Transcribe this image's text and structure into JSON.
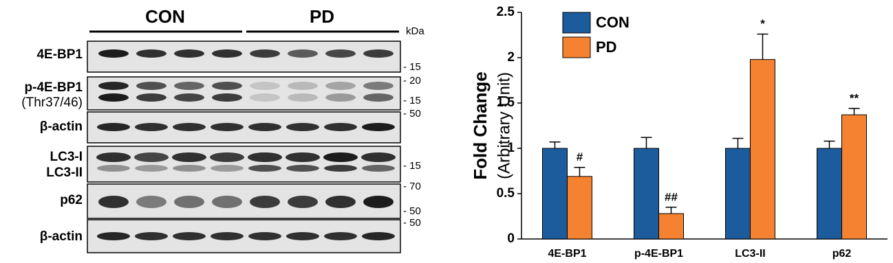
{
  "blot": {
    "groups": [
      "CON",
      "PD"
    ],
    "unit": "kDa",
    "rows": [
      "4E-BP1",
      "p-4E-BP1",
      "(Thr37/46)",
      "β-actin",
      "LC3-I",
      "LC3-II",
      "p62",
      "β-actin"
    ],
    "markers": [
      "- 15",
      "- 20",
      "- 15",
      "- 50",
      "- 15",
      "- 70",
      "- 50",
      "- 50"
    ]
  },
  "chart_data": {
    "type": "bar",
    "ylabel": [
      "Fold Change",
      "(Arbitrary Unit)"
    ],
    "categories": [
      "4E-BP1",
      "p-4E-BP1",
      "LC3-II",
      "p62"
    ],
    "series": [
      {
        "name": "CON",
        "color": "#1c5b9c",
        "values": [
          1,
          1,
          1,
          1
        ],
        "errors": [
          0.07,
          0.12,
          0.11,
          0.08
        ]
      },
      {
        "name": "PD",
        "color": "#f58231",
        "values": [
          0.69,
          0.28,
          1.98,
          1.37
        ],
        "errors": [
          0.1,
          0.07,
          0.28,
          0.07
        ],
        "annotations": [
          "#",
          "##",
          "*",
          "**"
        ]
      }
    ],
    "ylim": [
      0,
      2.5
    ],
    "yticks": [
      0,
      0.5,
      1,
      1.5,
      2,
      2.5
    ],
    "legend": "top-left"
  }
}
